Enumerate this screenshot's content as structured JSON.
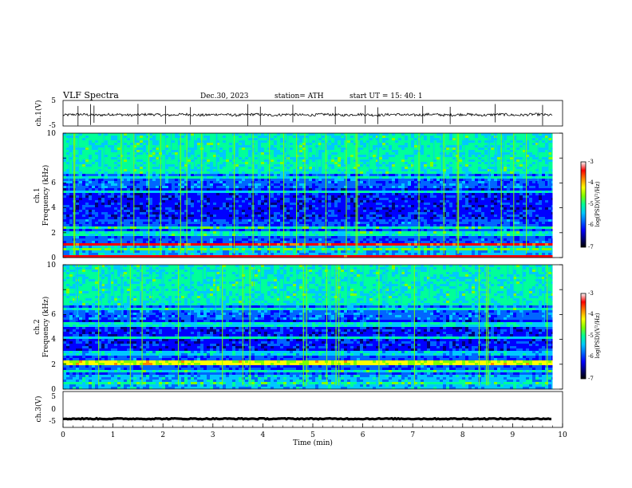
{
  "header": {
    "title": "VLF  Spectra",
    "date": "Dec.30, 2023",
    "station": "station= ATH",
    "start": "start  UT  =    15: 40: 1"
  },
  "colors": {
    "colormap": [
      "#000000",
      "#00007a",
      "#0000ff",
      "#0066ff",
      "#00c8ff",
      "#00ff99",
      "#7fff00",
      "#ffff00",
      "#ff8800",
      "#ff0000",
      "#ffffff"
    ],
    "trace": "#000000"
  },
  "chart_data": [
    {
      "type": "line",
      "name": "ch1-waveform",
      "ylabel": "ch.1(V)",
      "yticks": [
        "5",
        "-5"
      ],
      "ylim": [
        -5,
        5
      ],
      "xlim": [
        0,
        10
      ],
      "x_end_min": 9.8,
      "baseline_v": -0.6,
      "noise_v": 0.5,
      "spike_times_min": [
        0.3,
        0.55,
        0.62,
        1.5,
        2.05,
        2.55,
        3.7,
        3.95,
        4.6,
        5.45,
        6.05,
        6.3,
        7.2,
        7.75,
        8.65,
        9.6
      ]
    },
    {
      "type": "heatmap",
      "name": "ch1-spectrogram",
      "ylabel_channel": "ch.1",
      "ylabel": "Frequency  (kHz)",
      "yticks": [
        "0",
        "2",
        "4",
        "6",
        "8",
        "10"
      ],
      "ylim": [
        0,
        10
      ],
      "xlim": [
        0,
        10
      ],
      "x_end_min": 9.8,
      "colorbar_label": "log(PSD)(V²/Hz)",
      "colorbar_ticks": [
        "-3",
        "-4",
        "-5",
        "-6",
        "-7"
      ],
      "clim": [
        -7,
        -3
      ],
      "bands_khz": [
        {
          "f": 0.15,
          "level": -3.1
        },
        {
          "f": 0.7,
          "level": -4.7
        },
        {
          "f": 1.0,
          "level": -3.2
        },
        {
          "f": 1.9,
          "level": -5.1
        },
        {
          "f": 2.4,
          "level": -5.0
        },
        {
          "f": 5.3,
          "level": -5.3
        },
        {
          "f": 6.5,
          "level": -5.2
        }
      ]
    },
    {
      "type": "heatmap",
      "name": "ch2-spectrogram",
      "ylabel_channel": "ch.2",
      "ylabel": "Frequency  (kHz)",
      "yticks": [
        "0",
        "2",
        "4",
        "6",
        "8",
        "10"
      ],
      "ylim": [
        0,
        10
      ],
      "xlim": [
        0,
        10
      ],
      "x_end_min": 9.8,
      "colorbar_label": "log(PSD)(V²/Hz)",
      "colorbar_ticks": [
        "-3",
        "-4",
        "-5",
        "-6",
        "-7"
      ],
      "clim": [
        -7,
        -3
      ],
      "bands_khz": [
        {
          "f": 0.5,
          "level": -5.0
        },
        {
          "f": 1.4,
          "level": -5.1
        },
        {
          "f": 2.1,
          "level": -4.2
        },
        {
          "f": 2.9,
          "level": -5.4
        },
        {
          "f": 4.1,
          "level": -5.2
        },
        {
          "f": 5.2,
          "level": -5.3
        },
        {
          "f": 6.5,
          "level": -5.1
        }
      ]
    },
    {
      "type": "line",
      "name": "ch3-waveform",
      "ylabel": "ch.3(V)",
      "yticks": [
        "5",
        "0",
        "-5"
      ],
      "ylim": [
        -5,
        5
      ],
      "xlim": [
        0,
        10
      ],
      "x_end_min": 9.8,
      "baseline_v": -2.6,
      "noise_v": 0.15,
      "xlabel": "Time  (min)",
      "xticks": [
        "0",
        "1",
        "2",
        "3",
        "4",
        "5",
        "6",
        "7",
        "8",
        "9",
        "10"
      ]
    }
  ]
}
